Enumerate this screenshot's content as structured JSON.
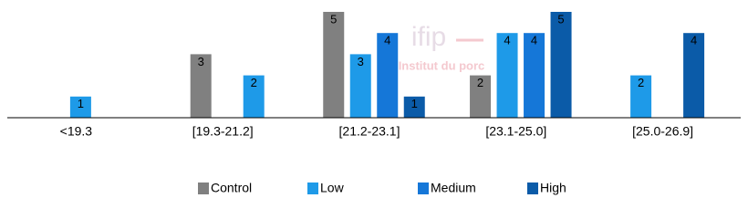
{
  "chart_data": {
    "type": "bar",
    "categories": [
      "<19.3",
      "[19.3-21.2]",
      "[21.2-23.1]",
      "[23.1-25.0]",
      "[25.0-26.9]"
    ],
    "series": [
      {
        "name": "Control",
        "color": "#808080",
        "values": [
          null,
          3,
          5,
          2,
          null
        ]
      },
      {
        "name": "Low",
        "color": "#1e9ae8",
        "values": [
          1,
          2,
          3,
          4,
          2
        ]
      },
      {
        "name": "Medium",
        "color": "#1577d8",
        "values": [
          null,
          null,
          4,
          4,
          null
        ]
      },
      {
        "name": "High",
        "color": "#0b5ba8",
        "values": [
          null,
          null,
          1,
          5,
          4
        ]
      }
    ],
    "ylim": [
      0,
      5
    ],
    "legend": "bottom",
    "watermark": {
      "logo": "ifip",
      "text": "Institut du porc"
    }
  }
}
